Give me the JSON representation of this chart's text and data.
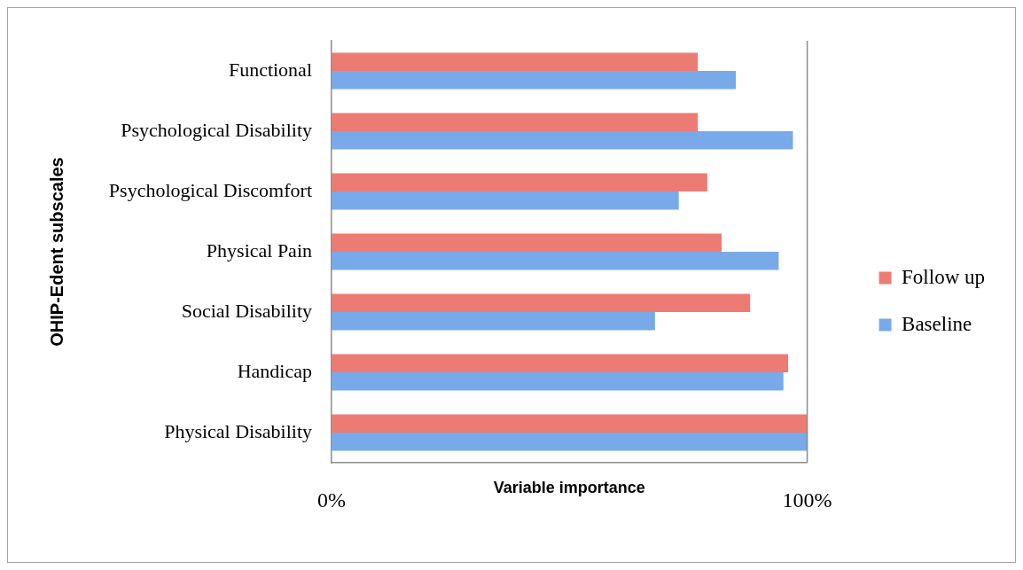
{
  "chart_data": {
    "type": "bar",
    "orientation": "horizontal",
    "categories": [
      "Functional",
      "Psychological Disability",
      "Psychological Discomfort",
      "Physical Pain",
      "Social Disability",
      "Handicap",
      "Physical Disability"
    ],
    "series": [
      {
        "name": "Follow up",
        "color": "#ec7b74",
        "values": [
          77,
          77,
          79,
          82,
          88,
          96,
          100
        ]
      },
      {
        "name": "Baseline",
        "color": "#78aaea",
        "values": [
          85,
          97,
          73,
          94,
          68,
          95,
          100
        ]
      }
    ],
    "xlabel": "Variable importance",
    "ylabel": "OHIP-Edent subscales",
    "xlim": [
      0,
      100
    ],
    "xticks": [
      {
        "value": 0,
        "label": "0%"
      },
      {
        "value": 100,
        "label": "100%"
      }
    ],
    "legend": "right"
  }
}
